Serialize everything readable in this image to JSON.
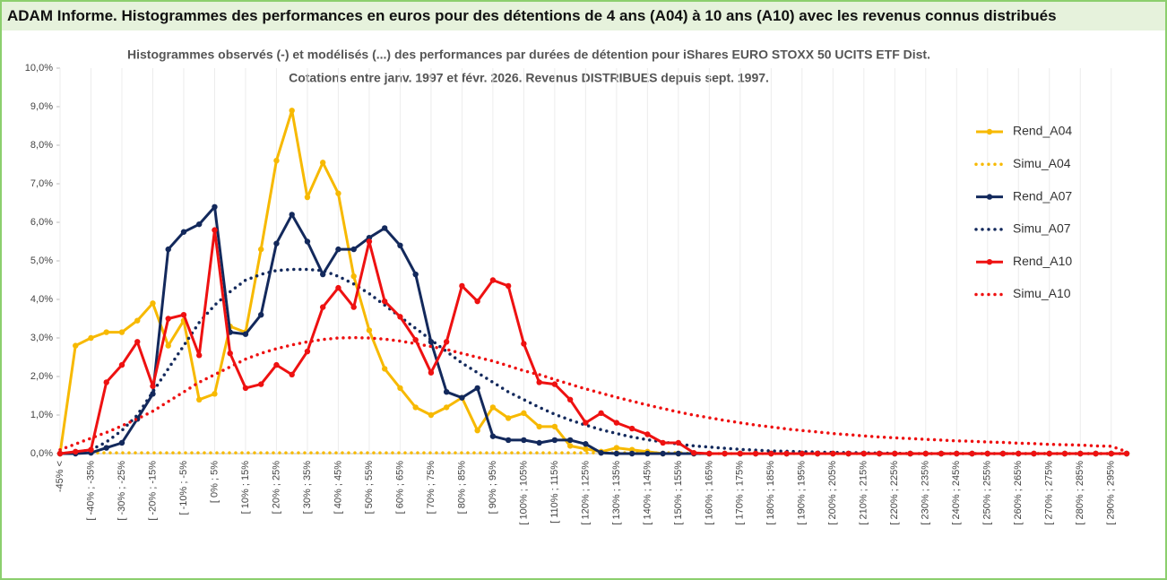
{
  "header": {
    "title": "ADAM Informe. Histogrammes des performances en euros pour des détentions de 4 ans (A04) à 10 ans (A10) avec les revenus connus distribués"
  },
  "chart_data": {
    "type": "line",
    "title": "Histogrammes observés (-) et modélisés (...) des performances par durées de détention pour iShares EURO STOXX 50 UCITS ETF Dist.",
    "subtitle": "Cotations entre janv. 1997 et févr. 2026. Revenus DISTRIBUES depuis sept. 1997.",
    "categories": [
      "-45% <",
      null,
      "[ -40% ; -35%",
      null,
      "[ -30% ; -25%",
      null,
      "[ -20% ; -15%",
      null,
      "[ -10% ; -5%",
      null,
      "[ 0% ; 5%",
      null,
      "[ 10% ; 15%",
      null,
      "[ 20% ; 25%",
      null,
      "[ 30% ; 35%",
      null,
      "[ 40% ; 45%",
      null,
      "[ 50% ; 55%",
      null,
      "[ 60% ; 65%",
      null,
      "[ 70% ; 75%",
      null,
      "[ 80% ; 85%",
      null,
      "[ 90% ; 95%",
      null,
      "[ 100% ; 105%",
      null,
      "[ 110% ; 115%",
      null,
      "[ 120% ; 125%",
      null,
      "[ 130% ; 135%",
      null,
      "[ 140% ; 145%",
      null,
      "[ 150% ; 155%",
      null,
      "[ 160% ; 165%",
      null,
      "[ 170% ; 175%",
      null,
      "[ 180% ; 185%",
      null,
      "[ 190% ; 195%",
      null,
      "[ 200% ; 205%",
      null,
      "[ 210% ; 215%",
      null,
      "[ 220% ; 225%",
      null,
      "[ 230% ; 235%",
      null,
      "[ 240% ; 245%",
      null,
      "[ 250% ; 255%",
      null,
      "[ 260% ; 265%",
      null,
      "[ 270% ; 275%",
      null,
      "[ 280% ; 285%",
      null,
      "[ 290% ; 295%",
      null
    ],
    "ylim": [
      0,
      10
    ],
    "yticks": [
      {
        "value": 0,
        "label": "0,0%"
      },
      {
        "value": 1,
        "label": "1,0%"
      },
      {
        "value": 2,
        "label": "2,0%"
      },
      {
        "value": 3,
        "label": "3,0%"
      },
      {
        "value": 4,
        "label": "4,0%"
      },
      {
        "value": 5,
        "label": "5,0%"
      },
      {
        "value": 6,
        "label": "6,0%"
      },
      {
        "value": 7,
        "label": "7,0%"
      },
      {
        "value": 8,
        "label": "8,0%"
      },
      {
        "value": 9,
        "label": "9,0%"
      },
      {
        "value": 10,
        "label": "10,0%"
      }
    ],
    "legend": "right",
    "series": [
      {
        "name": "Rend_A04",
        "color": "#f7b900",
        "style": "solid",
        "markers": true,
        "values": [
          0,
          2.8,
          3.0,
          3.15,
          3.15,
          3.45,
          3.9,
          2.8,
          3.45,
          1.4,
          1.55,
          3.3,
          3.15,
          5.3,
          7.6,
          8.9,
          6.65,
          7.55,
          6.75,
          4.6,
          3.2,
          2.2,
          1.7,
          1.2,
          1.0,
          1.2,
          1.45,
          0.6,
          1.2,
          0.92,
          1.05,
          0.7,
          0.7,
          0.2,
          0.12,
          0.05,
          0.15,
          0.1,
          0.05,
          0,
          0,
          0,
          0,
          0,
          0,
          0,
          0,
          0,
          0,
          0,
          0,
          0,
          0,
          0,
          0,
          0,
          0,
          0,
          0,
          0,
          0,
          0,
          0,
          0,
          0,
          0,
          0,
          0,
          0,
          0
        ]
      },
      {
        "name": "Simu_A04",
        "color": "#f7b900",
        "style": "dotted",
        "markers": false,
        "values": [
          0,
          0.02,
          0.02,
          0.02,
          0.02,
          0.02,
          0.02,
          0.02,
          0.02,
          0.02,
          0.02,
          0.02,
          0.02,
          0.02,
          0.02,
          0.02,
          0.02,
          0.02,
          0.02,
          0.02,
          0.02,
          0.02,
          0.02,
          0.02,
          0.02,
          0.02,
          0.02,
          0.02,
          0.02,
          0.02,
          0.02,
          0.02,
          0.02,
          0.02,
          0.02,
          0.02,
          0.02,
          0.02,
          0.02,
          0.02,
          0.02,
          0,
          0,
          0,
          0,
          0,
          0,
          0,
          0,
          0,
          0,
          0,
          0,
          0,
          0,
          0,
          0,
          0,
          0,
          0,
          0,
          0,
          0,
          0,
          0,
          0,
          0,
          0,
          0,
          0
        ]
      },
      {
        "name": "Rend_A07",
        "color": "#13295c",
        "style": "solid",
        "markers": true,
        "values": [
          0,
          0,
          0.02,
          0.15,
          0.28,
          0.9,
          1.55,
          5.3,
          5.75,
          5.95,
          6.4,
          3.15,
          3.1,
          3.6,
          5.45,
          6.2,
          5.5,
          4.65,
          5.3,
          5.3,
          5.6,
          5.85,
          5.4,
          4.65,
          2.9,
          1.6,
          1.45,
          1.7,
          0.45,
          0.35,
          0.35,
          0.28,
          0.35,
          0.35,
          0.25,
          0.02,
          0,
          0,
          0,
          0,
          0,
          0,
          0,
          0,
          0,
          0,
          0,
          0,
          0,
          0,
          0,
          0,
          0,
          0,
          0,
          0,
          0,
          0,
          0,
          0,
          0,
          0,
          0,
          0,
          0,
          0,
          0,
          0,
          0,
          0
        ]
      },
      {
        "name": "Simu_A07",
        "color": "#13295c",
        "style": "dotted",
        "markers": false,
        "values": [
          0,
          0.03,
          0.1,
          0.3,
          0.6,
          1.0,
          1.6,
          2.2,
          2.8,
          3.4,
          3.85,
          4.2,
          4.5,
          4.65,
          4.75,
          4.78,
          4.78,
          4.75,
          4.6,
          4.4,
          4.15,
          3.85,
          3.55,
          3.25,
          2.95,
          2.65,
          2.35,
          2.1,
          1.85,
          1.6,
          1.4,
          1.2,
          1.02,
          0.87,
          0.74,
          0.62,
          0.52,
          0.43,
          0.36,
          0.3,
          0.25,
          0.2,
          0.17,
          0.14,
          0.11,
          0.09,
          0.07,
          0.06,
          0.05,
          0.04,
          0.03,
          0.025,
          0.02,
          0.015,
          0.01,
          0,
          0,
          0,
          0,
          0,
          0,
          0,
          0,
          0,
          0,
          0,
          0,
          0,
          0,
          0
        ]
      },
      {
        "name": "Rend_A10",
        "color": "#ee1111",
        "style": "solid",
        "markers": true,
        "values": [
          0,
          0.05,
          0.1,
          1.85,
          2.3,
          2.9,
          1.75,
          3.5,
          3.6,
          2.55,
          5.8,
          2.6,
          1.7,
          1.8,
          2.3,
          2.05,
          2.65,
          3.8,
          4.3,
          3.8,
          5.5,
          3.95,
          3.55,
          2.95,
          2.1,
          2.9,
          4.35,
          3.95,
          4.5,
          4.35,
          2.85,
          1.85,
          1.8,
          1.4,
          0.8,
          1.05,
          0.8,
          0.65,
          0.5,
          0.28,
          0.28,
          0.02,
          0,
          0,
          0,
          0,
          0,
          0,
          0,
          0,
          0,
          0,
          0,
          0,
          0,
          0,
          0,
          0,
          0,
          0,
          0,
          0,
          0,
          0,
          0,
          0,
          0,
          0,
          0,
          0
        ]
      },
      {
        "name": "Simu_A10",
        "color": "#ee1111",
        "style": "dotted",
        "markers": false,
        "values": [
          0.1,
          0.25,
          0.4,
          0.55,
          0.72,
          0.9,
          1.1,
          1.35,
          1.6,
          1.85,
          2.05,
          2.25,
          2.45,
          2.6,
          2.72,
          2.82,
          2.9,
          2.96,
          3.0,
          3.01,
          3.0,
          2.97,
          2.92,
          2.85,
          2.78,
          2.7,
          2.6,
          2.5,
          2.4,
          2.28,
          2.15,
          2.05,
          1.92,
          1.8,
          1.68,
          1.57,
          1.46,
          1.36,
          1.26,
          1.17,
          1.08,
          1.0,
          0.93,
          0.86,
          0.8,
          0.74,
          0.69,
          0.64,
          0.6,
          0.56,
          0.52,
          0.49,
          0.46,
          0.43,
          0.41,
          0.39,
          0.37,
          0.35,
          0.33,
          0.32,
          0.3,
          0.29,
          0.27,
          0.26,
          0.24,
          0.23,
          0.22,
          0.2,
          0.19,
          0.05
        ]
      }
    ]
  }
}
